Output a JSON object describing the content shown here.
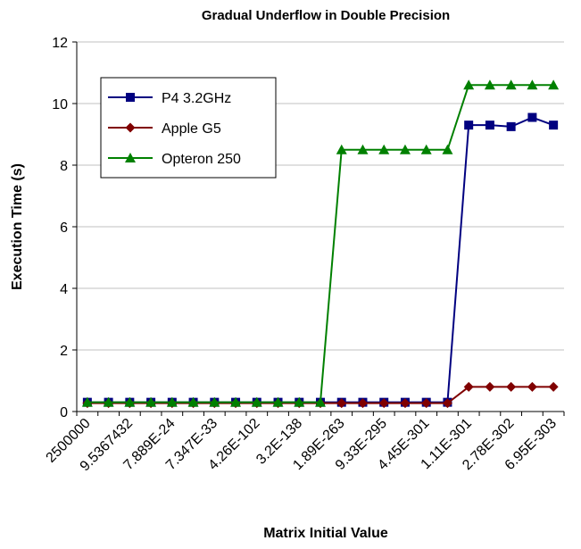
{
  "chart_data": {
    "type": "line",
    "title": "Gradual Underflow in Double Precision",
    "x_label": "Matrix Initial Value",
    "y_label": "Execution Time (s)",
    "categories": [
      "2500000",
      null,
      "9.5367432",
      null,
      "7.889E-24",
      null,
      "7.347E-33",
      null,
      "4.26E-102",
      null,
      "3.2E-138",
      null,
      "1.89E-263",
      null,
      "9.33E-295",
      null,
      "4.45E-301",
      null,
      "1.11E-301",
      null,
      "2.78E-302",
      null,
      "6.95E-303"
    ],
    "series": [
      {
        "name": "P4 3.2GHz",
        "color": "#000080",
        "marker": "square",
        "values": [
          0.3,
          0.3,
          0.3,
          0.3,
          0.3,
          0.3,
          0.3,
          0.3,
          0.3,
          0.3,
          0.3,
          0.3,
          0.3,
          0.3,
          0.3,
          0.3,
          0.3,
          0.3,
          9.3,
          9.3,
          9.25,
          9.55,
          9.3
        ]
      },
      {
        "name": "Apple G5",
        "color": "#800000",
        "marker": "diamond",
        "values": [
          0.27,
          0.27,
          0.27,
          0.27,
          0.27,
          0.27,
          0.27,
          0.27,
          0.27,
          0.27,
          0.27,
          0.27,
          0.27,
          0.27,
          0.27,
          0.27,
          0.27,
          0.27,
          0.8,
          0.8,
          0.8,
          0.8,
          0.8
        ]
      },
      {
        "name": "Opteron 250",
        "color": "#008000",
        "marker": "triangle",
        "values": [
          0.3,
          0.3,
          0.3,
          0.3,
          0.3,
          0.3,
          0.3,
          0.3,
          0.3,
          0.3,
          0.3,
          0.3,
          8.5,
          8.5,
          8.5,
          8.5,
          8.5,
          8.5,
          10.6,
          10.6,
          10.6,
          10.6,
          10.6
        ]
      }
    ],
    "ylim": [
      0,
      12
    ],
    "yticks": [
      0,
      2,
      4,
      6,
      8,
      10,
      12
    ],
    "grid": true,
    "legend": "upper-left"
  }
}
